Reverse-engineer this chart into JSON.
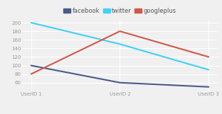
{
  "x_labels": [
    "UserID 1",
    "UserID 2",
    "UserID 3"
  ],
  "x_values": [
    0,
    1,
    2
  ],
  "series": [
    {
      "label": "facebook",
      "color": "#4a5a8a",
      "values": [
        100,
        60,
        50
      ]
    },
    {
      "label": "twitter",
      "color": "#40d0f8",
      "values": [
        200,
        150,
        90
      ]
    },
    {
      "label": "googleplus",
      "color": "#d05848",
      "values": [
        80,
        180,
        120
      ]
    }
  ],
  "ylim": [
    40,
    205
  ],
  "yticks": [
    60,
    80,
    100,
    120,
    140,
    160,
    180,
    200
  ],
  "background_color": "#f0f0f0",
  "plot_background": "#f0f0f0",
  "grid_color": "#ffffff",
  "line_width": 1.5,
  "legend_fontsize": 6,
  "tick_fontsize": 5,
  "tick_color": "#999999"
}
